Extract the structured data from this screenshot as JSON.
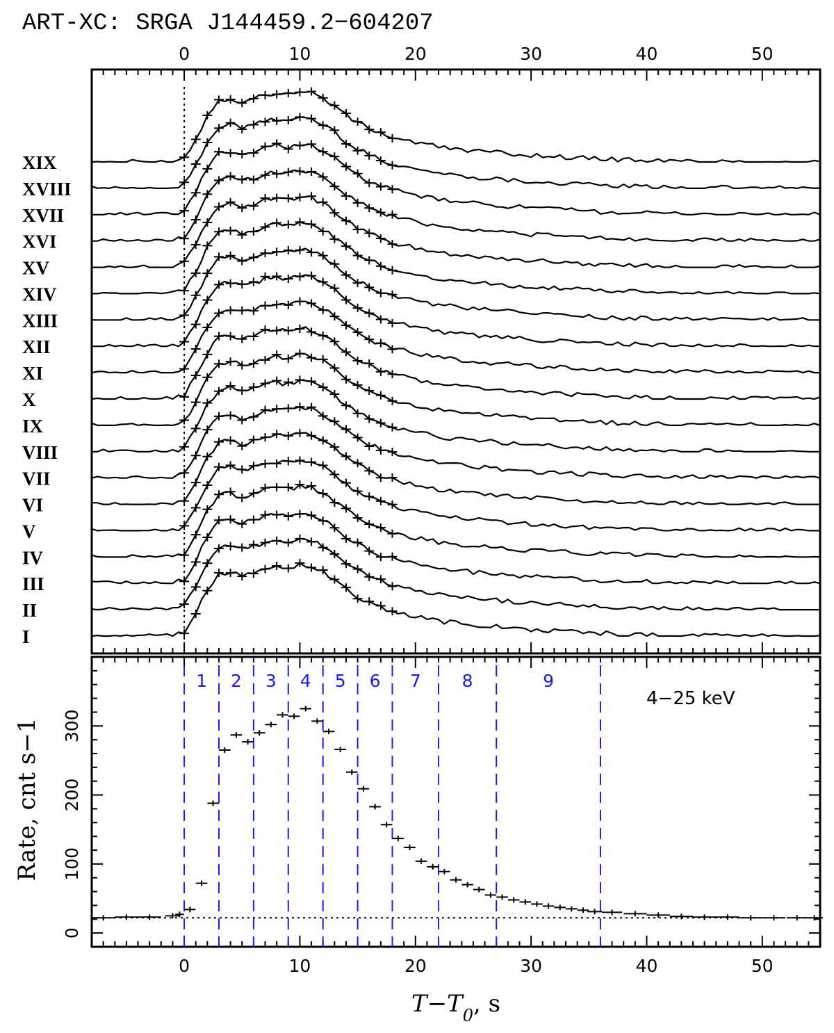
{
  "title": "ART-XC: SRGA J144459.2−604207",
  "chart_data": [
    {
      "type": "line",
      "panel": "stacked light curves",
      "x_range": [
        -8,
        55
      ],
      "x_ticks": [
        0,
        10,
        20,
        30,
        40,
        50
      ],
      "t0_marker_x": 0,
      "curve_labels": [
        "XIX",
        "XVIII",
        "XVII",
        "XVI",
        "XV",
        "XIV",
        "XIII",
        "XII",
        "XI",
        "X",
        "IX",
        "VIII",
        "VII",
        "VI",
        "V",
        "IV",
        "III",
        "II",
        "I"
      ],
      "profile_knots": [
        [
          -8,
          0.0
        ],
        [
          -1,
          0.0
        ],
        [
          0,
          0.05
        ],
        [
          1,
          0.3
        ],
        [
          2,
          0.62
        ],
        [
          3,
          0.82
        ],
        [
          4,
          0.85
        ],
        [
          5,
          0.8
        ],
        [
          6,
          0.84
        ],
        [
          7,
          0.9
        ],
        [
          8,
          0.92
        ],
        [
          9,
          0.9
        ],
        [
          10,
          0.95
        ],
        [
          11,
          0.92
        ],
        [
          12,
          0.85
        ],
        [
          13,
          0.75
        ],
        [
          14,
          0.62
        ],
        [
          15,
          0.52
        ],
        [
          16,
          0.45
        ],
        [
          17,
          0.38
        ],
        [
          18,
          0.33
        ],
        [
          20,
          0.26
        ],
        [
          22,
          0.2
        ],
        [
          25,
          0.15
        ],
        [
          30,
          0.09
        ],
        [
          36,
          0.04
        ],
        [
          42,
          0.01
        ],
        [
          55,
          0.0
        ]
      ]
    },
    {
      "type": "scatter",
      "panel": "total light curve",
      "energy_band": "4−25 keV",
      "xlabel": "T−T0, s",
      "ylabel": "Rate, cnt s−1",
      "xlim": [
        -8,
        55
      ],
      "ylim": [
        -20,
        400
      ],
      "x_ticks": [
        0,
        10,
        20,
        30,
        40,
        50
      ],
      "y_ticks": [
        0,
        100,
        200,
        300
      ],
      "background_level": 22,
      "points": [
        {
          "x": -7,
          "y": 22
        },
        {
          "x": -5,
          "y": 23
        },
        {
          "x": -3,
          "y": 23
        },
        {
          "x": -1,
          "y": 25
        },
        {
          "x": -0.4,
          "y": 27
        },
        {
          "x": 0.5,
          "y": 34
        },
        {
          "x": 1.5,
          "y": 72
        },
        {
          "x": 2.5,
          "y": 188
        },
        {
          "x": 3.5,
          "y": 265
        },
        {
          "x": 4.5,
          "y": 287
        },
        {
          "x": 5.5,
          "y": 277
        },
        {
          "x": 6.5,
          "y": 290
        },
        {
          "x": 7.5,
          "y": 302
        },
        {
          "x": 8.5,
          "y": 316
        },
        {
          "x": 9.5,
          "y": 314
        },
        {
          "x": 10.5,
          "y": 325
        },
        {
          "x": 11.5,
          "y": 307
        },
        {
          "x": 12.5,
          "y": 292
        },
        {
          "x": 13.5,
          "y": 266
        },
        {
          "x": 14.5,
          "y": 233
        },
        {
          "x": 15.5,
          "y": 209
        },
        {
          "x": 16.5,
          "y": 183
        },
        {
          "x": 17.5,
          "y": 157
        },
        {
          "x": 18.5,
          "y": 137
        },
        {
          "x": 19.5,
          "y": 124
        },
        {
          "x": 20.5,
          "y": 104
        },
        {
          "x": 21.5,
          "y": 96
        },
        {
          "x": 22.5,
          "y": 89
        },
        {
          "x": 23.5,
          "y": 77
        },
        {
          "x": 24.5,
          "y": 70
        },
        {
          "x": 25.5,
          "y": 63
        },
        {
          "x": 26.5,
          "y": 55
        },
        {
          "x": 27.5,
          "y": 52
        },
        {
          "x": 28.5,
          "y": 48
        },
        {
          "x": 29.5,
          "y": 45
        },
        {
          "x": 30.5,
          "y": 42
        },
        {
          "x": 31.5,
          "y": 39
        },
        {
          "x": 32.5,
          "y": 37
        },
        {
          "x": 33.5,
          "y": 35
        },
        {
          "x": 34.5,
          "y": 33
        },
        {
          "x": 35.5,
          "y": 31
        },
        {
          "x": 37,
          "y": 30
        },
        {
          "x": 39,
          "y": 28
        },
        {
          "x": 41,
          "y": 26
        },
        {
          "x": 43,
          "y": 24
        },
        {
          "x": 45,
          "y": 23
        },
        {
          "x": 47,
          "y": 23
        },
        {
          "x": 49,
          "y": 22
        },
        {
          "x": 51,
          "y": 22
        },
        {
          "x": 53,
          "y": 22
        },
        {
          "x": 54.5,
          "y": 22
        }
      ],
      "interval_boundaries": [
        0,
        3,
        6,
        9,
        12,
        15,
        18,
        22,
        27,
        36
      ],
      "interval_labels": [
        "1",
        "2",
        "3",
        "4",
        "5",
        "6",
        "7",
        "8",
        "9"
      ],
      "boundary_color": "#1a1aff"
    }
  ]
}
